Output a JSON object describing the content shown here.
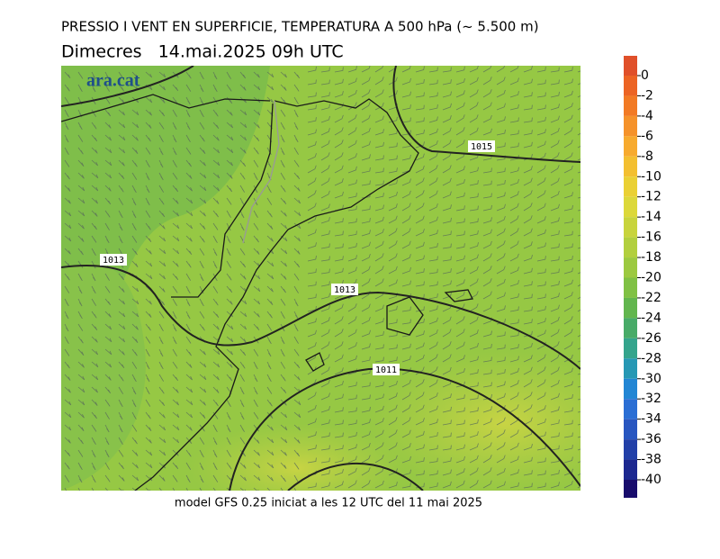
{
  "header": {
    "title": "PRESSIO I VENT EN SUPERFICIE, TEMPERATURA A 500 hPa (~ 5.500 m)",
    "subtitle": "Dimecres   14.mai.2025 09h UTC"
  },
  "logo": "ara.cat",
  "isobars": [
    {
      "label": "1015"
    },
    {
      "label": "1013"
    },
    {
      "label": "1013"
    },
    {
      "label": "1011"
    }
  ],
  "colorbar": {
    "labels": [
      "0",
      "-2",
      "-4",
      "-6",
      "-8",
      "-10",
      "-12",
      "-14",
      "-16",
      "-18",
      "-20",
      "-22",
      "-24",
      "-26",
      "-28",
      "-30",
      "-32",
      "-34",
      "-36",
      "-38",
      "-40"
    ],
    "colors": [
      "#e0502a",
      "#ec6424",
      "#f27a24",
      "#f5922a",
      "#f7aa2e",
      "#f3bf30",
      "#ead034",
      "#dcd83a",
      "#c8d43c",
      "#b2cf3e",
      "#9cc940",
      "#80c144",
      "#62b64e",
      "#48ab68",
      "#34a48c",
      "#2698b4",
      "#2286d4",
      "#2a6ed4",
      "#2856c0",
      "#2240a8",
      "#1c2890",
      "#180c6c"
    ]
  },
  "footer": "model GFS 0.25 iniciat a les 12 UTC del 11 mai 2025"
}
